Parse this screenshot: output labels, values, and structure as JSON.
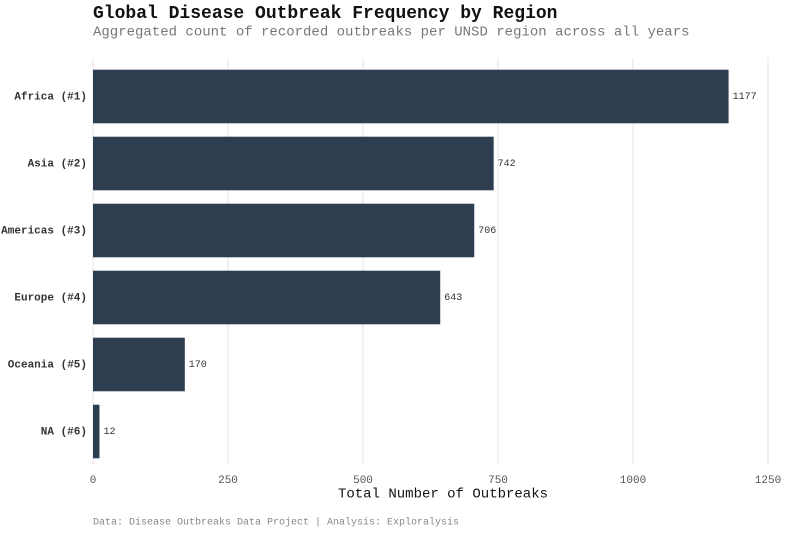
{
  "chart_data": {
    "type": "barh",
    "title": "Global Disease Outbreak Frequency by Region",
    "subtitle": "Aggregated count of recorded outbreaks per UNSD region across all years",
    "x_label": "Total Number of Outbreaks",
    "caption": "Data: Disease Outbreaks Data Project | Analysis: Exploralysis",
    "categories": [
      "Africa (#1)",
      "Asia (#2)",
      "Americas (#3)",
      "Europe (#4)",
      "Oceania (#5)",
      "NA (#6)"
    ],
    "values": [
      1177,
      742,
      706,
      643,
      170,
      12
    ],
    "color": "#2d3e50",
    "xlim": [
      0,
      1250
    ],
    "xticks": [
      0,
      250,
      500,
      750,
      1000,
      1250
    ],
    "grid": true
  }
}
